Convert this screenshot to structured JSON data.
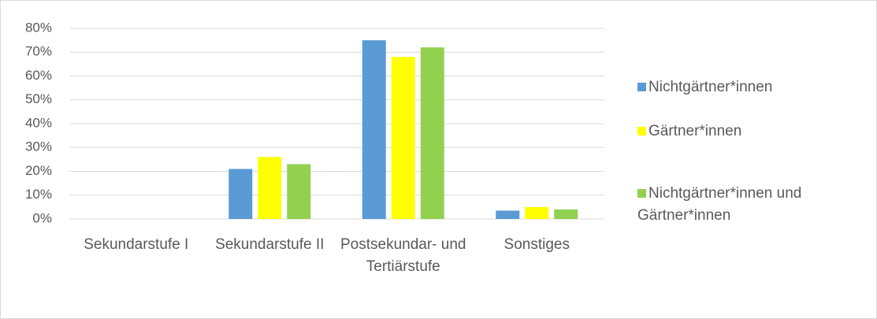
{
  "chart_data": {
    "type": "bar",
    "categories": [
      "Sekundarstufe I",
      "Sekundarstufe II",
      "Postsekundar- und Tertiärstufe",
      "Sonstiges"
    ],
    "series": [
      {
        "name": "Nichtgärtner*innen",
        "color": "#5b9bd5",
        "values": [
          0,
          21,
          75,
          3.5
        ]
      },
      {
        "name": "Gärtner*innen",
        "color": "#ffff00",
        "values": [
          0,
          26,
          68,
          5
        ]
      },
      {
        "name": "Nichtgärtner*innen und Gärtner*innen",
        "color": "#92d050",
        "values": [
          0,
          23,
          72,
          4
        ]
      }
    ],
    "ylim": [
      0,
      80
    ],
    "yticks": [
      {
        "value": 0,
        "label": "0%"
      },
      {
        "value": 10,
        "label": "10%"
      },
      {
        "value": 20,
        "label": "20%"
      },
      {
        "value": 30,
        "label": "30%"
      },
      {
        "value": 40,
        "label": "40%"
      },
      {
        "value": 50,
        "label": "50%"
      },
      {
        "value": 60,
        "label": "60%"
      },
      {
        "value": 70,
        "label": "70%"
      },
      {
        "value": 80,
        "label": "80%"
      }
    ],
    "grid": true,
    "legend": "right"
  }
}
